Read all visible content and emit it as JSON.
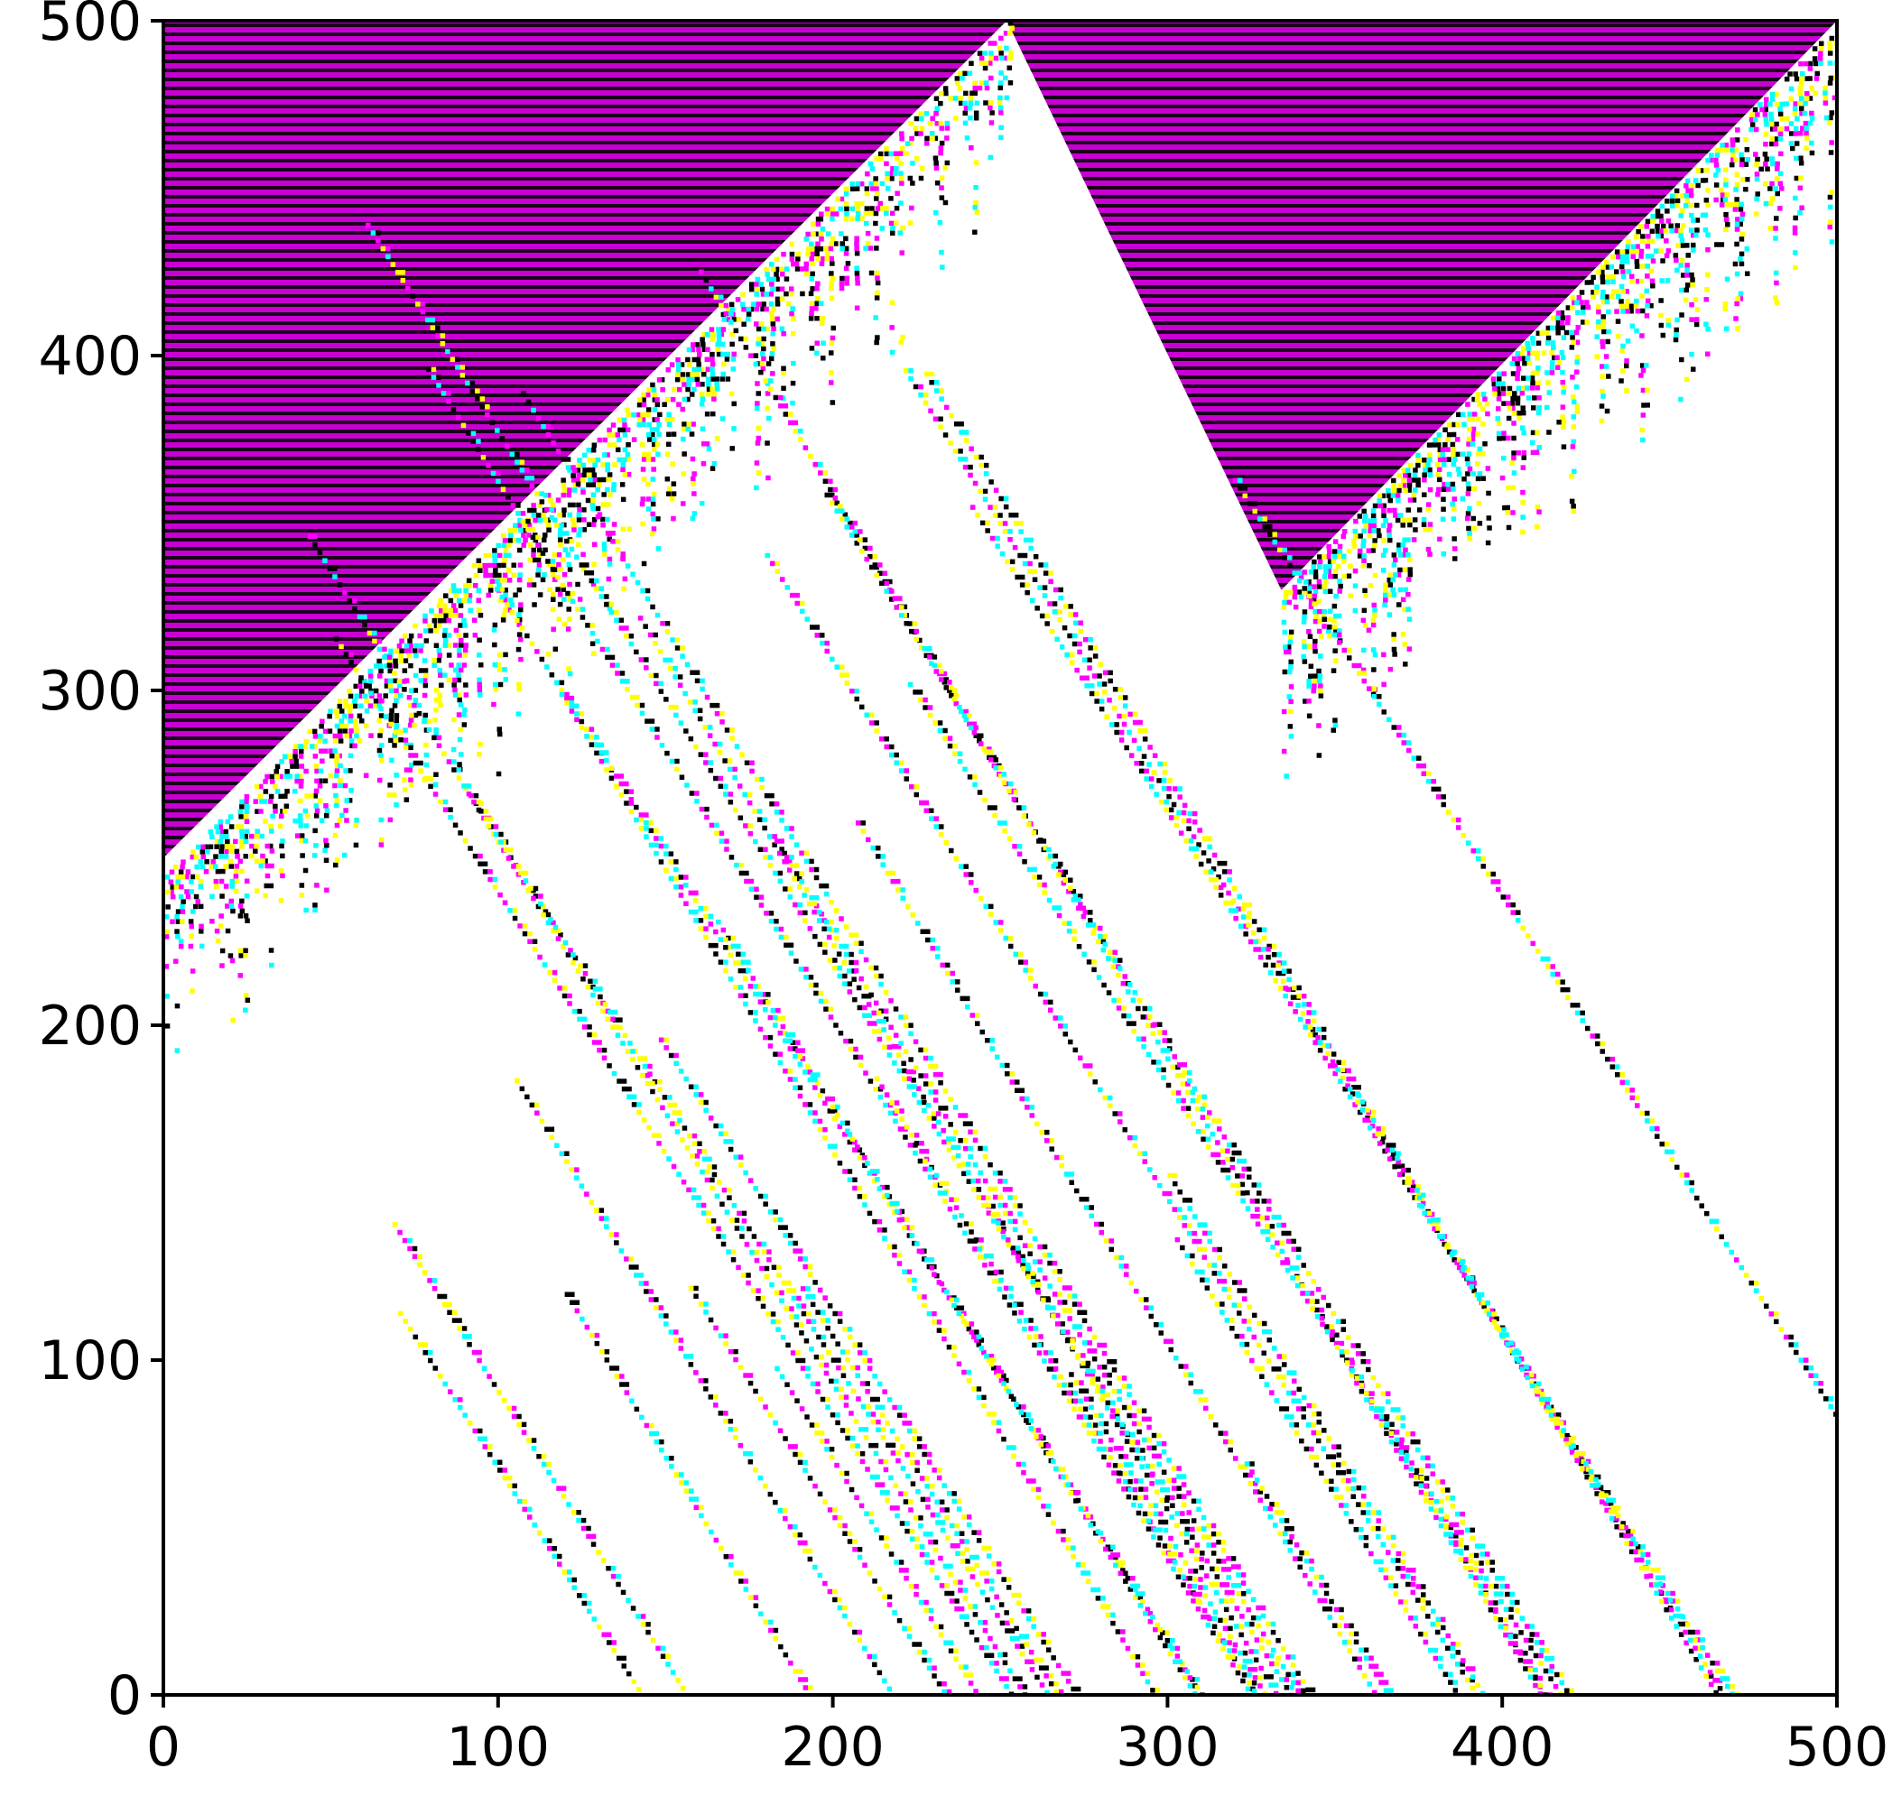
{
  "chart_data": {
    "type": "heatmap",
    "title": "",
    "xlabel": "",
    "ylabel": "",
    "xlim": [
      0,
      500
    ],
    "ylim": [
      0,
      500
    ],
    "x_ticks": [
      0,
      100,
      200,
      300,
      400,
      500
    ],
    "y_ticks": [
      0,
      100,
      200,
      300,
      400,
      500
    ],
    "x_tick_labels": [
      "0",
      "100",
      "200",
      "300",
      "400",
      "500"
    ],
    "y_tick_labels": [
      "0",
      "100",
      "200",
      "300",
      "400",
      "500"
    ],
    "grid": false,
    "legend": "none",
    "colors": {
      "background": "#ffffff",
      "stripe_a": "#c800d2",
      "stripe_b": "#1a001c",
      "cells": [
        "#000000",
        "#ff00ff",
        "#ffff00",
        "#00ffff"
      ]
    },
    "regions": [
      {
        "name": "striped-region-left",
        "polygon": [
          [
            0,
            250
          ],
          [
            252,
            500
          ],
          [
            0,
            500
          ]
        ]
      },
      {
        "name": "striped-region-right",
        "polygon": [
          [
            252,
            500
          ],
          [
            500,
            500
          ],
          [
            334,
            330
          ]
        ]
      }
    ],
    "chaotic_fronts": [
      {
        "from": [
          0,
          245
        ],
        "to": [
          252,
          500
        ]
      },
      {
        "from": [
          334,
          330
        ],
        "to": [
          500,
          500
        ]
      }
    ]
  }
}
